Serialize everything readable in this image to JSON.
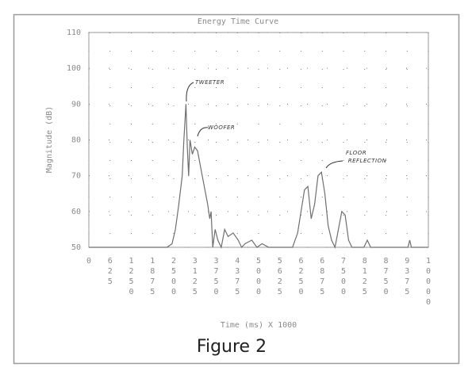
{
  "chart_data": {
    "type": "line",
    "title": "Energy Time Curve",
    "y_label": "Magnitude (dB)",
    "x_label": "Time (ms) X 1000",
    "caption": "Figure 2",
    "annotations": [
      "TWEETER",
      "WOOFER",
      "FLOOR REFLECTION"
    ],
    "xlim": [
      0,
      10000
    ],
    "xticks": [
      0,
      625,
      1250,
      1875,
      2500,
      3125,
      3750,
      4375,
      5000,
      5625,
      6250,
      6875,
      7500,
      8125,
      8750,
      9375,
      10000
    ],
    "ylim": [
      50,
      110
    ],
    "yticks": [
      50,
      60,
      70,
      80,
      90,
      100,
      110
    ],
    "grid": true,
    "color": "#6f6f6f",
    "x": [
      0,
      2300,
      2450,
      2550,
      2650,
      2750,
      2800,
      2860,
      2900,
      2940,
      2980,
      3050,
      3120,
      3200,
      3300,
      3400,
      3500,
      3560,
      3600,
      3650,
      3720,
      3800,
      3900,
      4000,
      4100,
      4250,
      4400,
      4500,
      4600,
      4800,
      4950,
      5100,
      5300,
      6000,
      6150,
      6250,
      6350,
      6450,
      6550,
      6650,
      6750,
      6850,
      6950,
      7050,
      7150,
      7250,
      7350,
      7450,
      7550,
      7650,
      7750,
      8100,
      8200,
      8300,
      9400,
      9450,
      9500,
      10000
    ],
    "values": [
      50,
      50,
      51,
      55,
      62,
      70,
      80,
      90,
      78,
      70,
      80,
      76,
      78,
      77,
      72,
      67,
      62,
      58,
      60,
      50,
      55,
      52,
      50,
      55,
      53,
      54,
      52,
      50,
      51,
      52,
      50,
      51,
      50,
      50,
      54,
      60,
      66,
      67,
      58,
      62,
      70,
      71,
      65,
      56,
      52,
      50,
      55,
      60,
      59,
      52,
      50,
      50,
      52,
      50,
      50,
      52,
      50,
      50
    ]
  }
}
